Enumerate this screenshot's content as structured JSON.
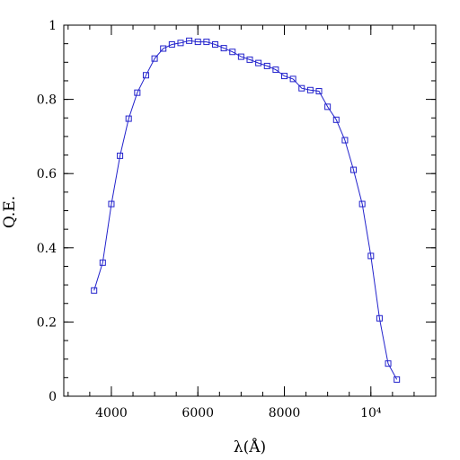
{
  "chart_data": {
    "type": "line",
    "title": "",
    "xlabel": "λ(Å)",
    "ylabel": "Q.E.",
    "xlim": [
      2900,
      11500
    ],
    "ylim": [
      0,
      1
    ],
    "x_ticks": [
      {
        "value": 4000,
        "label": "4000"
      },
      {
        "value": 6000,
        "label": "6000"
      },
      {
        "value": 8000,
        "label": "8000"
      },
      {
        "value": 10000,
        "label": "10⁴"
      }
    ],
    "y_ticks": [
      {
        "value": 0,
        "label": "0"
      },
      {
        "value": 0.2,
        "label": "0.2"
      },
      {
        "value": 0.4,
        "label": "0.4"
      },
      {
        "value": 0.6,
        "label": "0.6"
      },
      {
        "value": 0.8,
        "label": "0.8"
      },
      {
        "value": 1,
        "label": "1"
      }
    ],
    "x_minor_step": 500,
    "y_minor_step": 0.05,
    "grid": false,
    "series": [
      {
        "color": "#2222cc",
        "marker": "square",
        "x": [
          3600,
          3800,
          4000,
          4200,
          4400,
          4600,
          4800,
          5000,
          5200,
          5400,
          5600,
          5800,
          6000,
          6200,
          6400,
          6600,
          6800,
          7000,
          7200,
          7400,
          7600,
          7800,
          8000,
          8200,
          8400,
          8600,
          8800,
          9000,
          9200,
          9400,
          9600,
          9800,
          10000,
          10200,
          10400,
          10600
        ],
        "y": [
          0.285,
          0.36,
          0.518,
          0.648,
          0.748,
          0.818,
          0.865,
          0.91,
          0.937,
          0.948,
          0.952,
          0.958,
          0.955,
          0.955,
          0.948,
          0.938,
          0.928,
          0.915,
          0.907,
          0.898,
          0.89,
          0.88,
          0.863,
          0.855,
          0.83,
          0.825,
          0.822,
          0.78,
          0.745,
          0.69,
          0.61,
          0.518,
          0.378,
          0.21,
          0.088,
          0.045
        ]
      }
    ]
  }
}
